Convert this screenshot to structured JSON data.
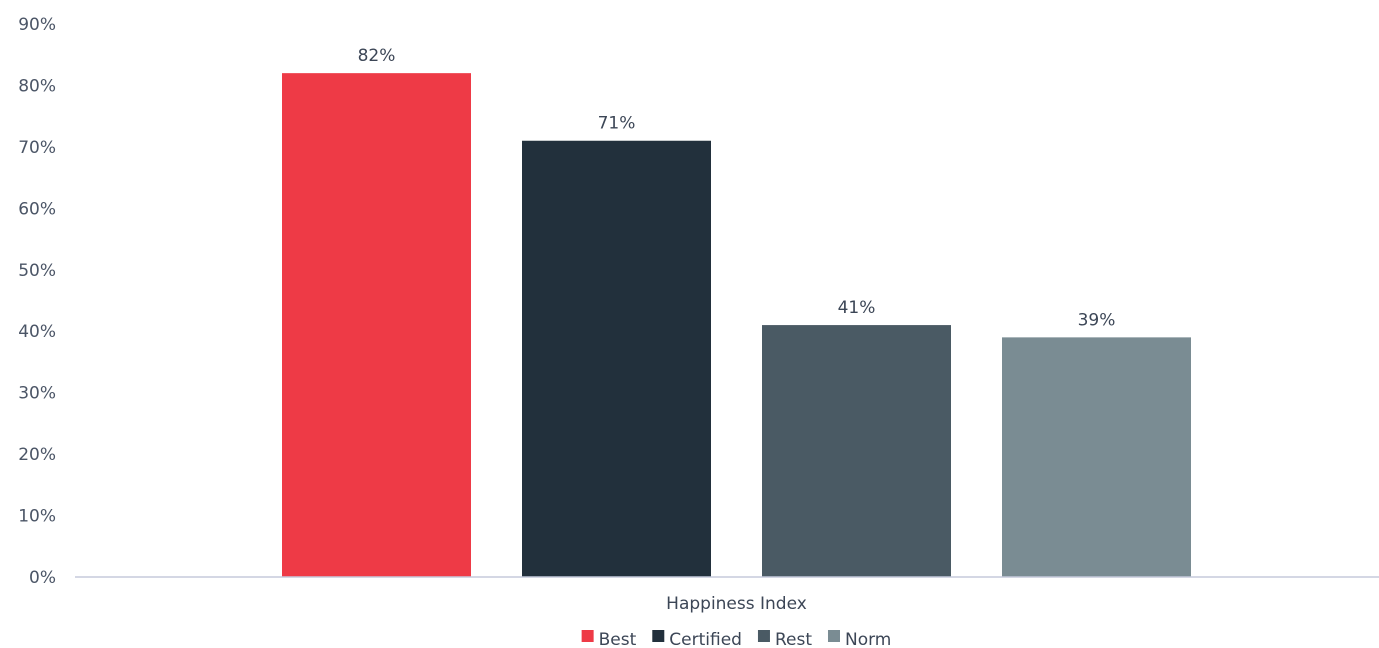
{
  "chart_data": {
    "type": "bar",
    "categories": [
      "Happiness Index"
    ],
    "series": [
      {
        "name": "Best",
        "values": [
          82
        ],
        "label": "82%",
        "color": "#ee3a46"
      },
      {
        "name": "Certified",
        "values": [
          71
        ],
        "label": "71%",
        "color": "#22303c"
      },
      {
        "name": "Rest",
        "values": [
          41
        ],
        "label": "41%",
        "color": "#4a5a64"
      },
      {
        "name": "Norm",
        "values": [
          39
        ],
        "label": "39%",
        "color": "#7a8c93"
      }
    ],
    "ylim": [
      0,
      90
    ],
    "yticks": [
      {
        "value": 0,
        "label": "0%"
      },
      {
        "value": 10,
        "label": "10%"
      },
      {
        "value": 20,
        "label": "20%"
      },
      {
        "value": 30,
        "label": "30%"
      },
      {
        "value": 40,
        "label": "40%"
      },
      {
        "value": 50,
        "label": "50%"
      },
      {
        "value": 60,
        "label": "60%"
      },
      {
        "value": 70,
        "label": "70%"
      },
      {
        "value": 80,
        "label": "80%"
      },
      {
        "value": 90,
        "label": "90%"
      }
    ],
    "title": "",
    "xlabel": "",
    "ylabel": "",
    "grid": false,
    "legend_position": "bottom-center",
    "axis_color": "#c5cadb"
  }
}
